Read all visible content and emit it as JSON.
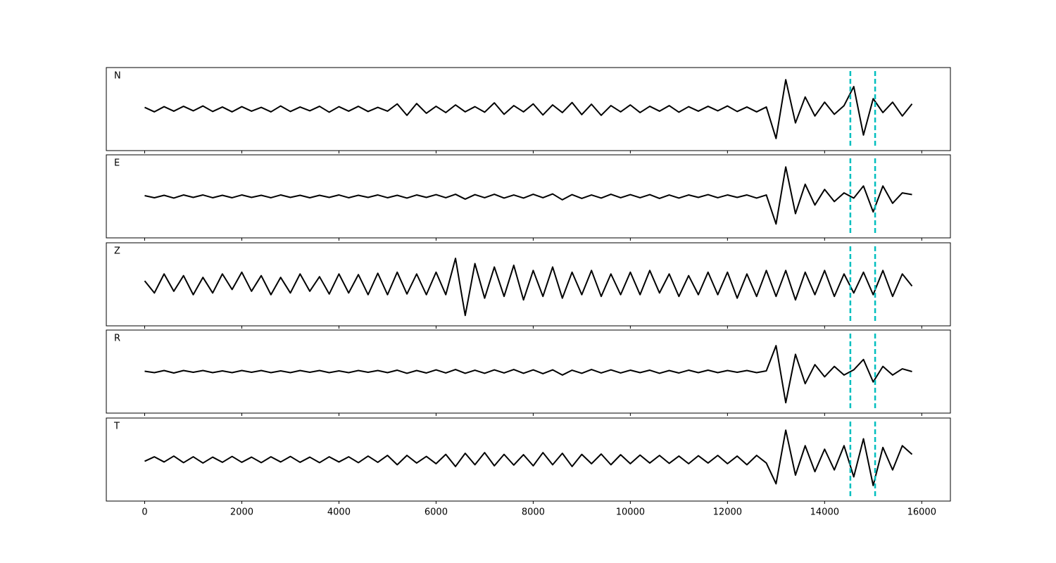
{
  "chart_data": {
    "type": "line",
    "x": [
      0,
      200,
      400,
      600,
      800,
      1000,
      1200,
      1400,
      1600,
      1800,
      2000,
      2200,
      2400,
      2600,
      2800,
      3000,
      3200,
      3400,
      3600,
      3800,
      4000,
      4200,
      4400,
      4600,
      4800,
      5000,
      5200,
      5400,
      5600,
      5800,
      6000,
      6200,
      6400,
      6600,
      6800,
      7000,
      7200,
      7400,
      7600,
      7800,
      8000,
      8200,
      8400,
      8600,
      8800,
      9000,
      9200,
      9400,
      9600,
      9800,
      10000,
      10200,
      10400,
      10600,
      10800,
      11000,
      11200,
      11400,
      11600,
      11800,
      12000,
      12200,
      12400,
      12600,
      12800,
      13000,
      13200,
      13400,
      13600,
      13800,
      14000,
      14200,
      14400,
      14600,
      14800,
      15000,
      15200,
      15400,
      15600,
      15800
    ],
    "xlim": [
      -790,
      16590
    ],
    "xticks": [
      0,
      2000,
      4000,
      6000,
      8000,
      10000,
      12000,
      14000,
      16000
    ],
    "ylim": [
      -1.2,
      1.2
    ],
    "series": [
      {
        "name": "N",
        "color": "#000000",
        "values": [
          0.05,
          -0.08,
          0.07,
          -0.06,
          0.08,
          -0.05,
          0.09,
          -0.07,
          0.06,
          -0.08,
          0.07,
          -0.06,
          0.05,
          -0.08,
          0.09,
          -0.07,
          0.06,
          -0.05,
          0.08,
          -0.09,
          0.07,
          -0.06,
          0.08,
          -0.07,
          0.05,
          -0.06,
          0.15,
          -0.18,
          0.16,
          -0.12,
          0.08,
          -0.1,
          0.12,
          -0.08,
          0.07,
          -0.09,
          0.18,
          -0.15,
          0.1,
          -0.08,
          0.15,
          -0.17,
          0.12,
          -0.1,
          0.19,
          -0.16,
          0.14,
          -0.18,
          0.1,
          -0.08,
          0.12,
          -0.1,
          0.08,
          -0.06,
          0.1,
          -0.09,
          0.07,
          -0.06,
          0.08,
          -0.05,
          0.09,
          -0.07,
          0.06,
          -0.08,
          0.06,
          -0.85,
          0.85,
          -0.4,
          0.35,
          -0.2,
          0.2,
          -0.15,
          0.1,
          0.65,
          -0.75,
          0.3,
          -0.1,
          0.2,
          -0.2,
          0.15
        ]
      },
      {
        "name": "E",
        "color": "#000000",
        "values": [
          0.02,
          -0.04,
          0.03,
          -0.05,
          0.04,
          -0.03,
          0.04,
          -0.04,
          0.03,
          -0.04,
          0.04,
          -0.03,
          0.03,
          -0.04,
          0.04,
          -0.03,
          0.03,
          -0.04,
          0.03,
          -0.03,
          0.04,
          -0.04,
          0.03,
          -0.03,
          0.04,
          -0.04,
          0.03,
          -0.05,
          0.04,
          -0.03,
          0.05,
          -0.04,
          0.06,
          -0.08,
          0.05,
          -0.04,
          0.06,
          -0.05,
          0.04,
          -0.05,
          0.06,
          -0.04,
          0.07,
          -0.1,
          0.05,
          -0.06,
          0.04,
          -0.05,
          0.06,
          -0.04,
          0.05,
          -0.04,
          0.05,
          -0.06,
          0.04,
          -0.05,
          0.04,
          -0.03,
          0.05,
          -0.04,
          0.04,
          -0.03,
          0.04,
          -0.05,
          0.04,
          -0.8,
          0.85,
          -0.5,
          0.35,
          -0.25,
          0.2,
          -0.15,
          0.1,
          -0.05,
          0.3,
          -0.45,
          0.3,
          -0.2,
          0.1,
          0.05
        ]
      },
      {
        "name": "Z",
        "color": "#000000",
        "values": [
          0.1,
          -0.25,
          0.3,
          -0.2,
          0.25,
          -0.3,
          0.2,
          -0.25,
          0.3,
          -0.15,
          0.35,
          -0.2,
          0.25,
          -0.3,
          0.2,
          -0.25,
          0.3,
          -0.2,
          0.22,
          -0.28,
          0.3,
          -0.25,
          0.28,
          -0.3,
          0.32,
          -0.3,
          0.35,
          -0.28,
          0.3,
          -0.3,
          0.35,
          -0.3,
          0.75,
          -0.9,
          0.6,
          -0.4,
          0.5,
          -0.35,
          0.55,
          -0.45,
          0.4,
          -0.35,
          0.5,
          -0.4,
          0.35,
          -0.3,
          0.4,
          -0.35,
          0.3,
          -0.3,
          0.35,
          -0.3,
          0.4,
          -0.25,
          0.3,
          -0.35,
          0.25,
          -0.3,
          0.35,
          -0.3,
          0.35,
          -0.4,
          0.3,
          -0.35,
          0.4,
          -0.35,
          0.4,
          -0.45,
          0.35,
          -0.3,
          0.4,
          -0.35,
          0.3,
          -0.25,
          0.35,
          -0.3,
          0.4,
          -0.35,
          0.3,
          -0.05
        ]
      },
      {
        "name": "R",
        "color": "#000000",
        "values": [
          0.01,
          -0.03,
          0.03,
          -0.04,
          0.03,
          -0.02,
          0.03,
          -0.03,
          0.02,
          -0.03,
          0.03,
          -0.02,
          0.03,
          -0.03,
          0.02,
          -0.03,
          0.03,
          -0.02,
          0.03,
          -0.03,
          0.02,
          -0.03,
          0.03,
          -0.02,
          0.03,
          -0.03,
          0.04,
          -0.05,
          0.03,
          -0.04,
          0.05,
          -0.04,
          0.06,
          -0.05,
          0.04,
          -0.05,
          0.05,
          -0.04,
          0.06,
          -0.05,
          0.05,
          -0.06,
          0.05,
          -0.1,
          0.04,
          -0.05,
          0.06,
          -0.04,
          0.05,
          -0.04,
          0.04,
          -0.03,
          0.04,
          -0.05,
          0.03,
          -0.04,
          0.04,
          -0.03,
          0.04,
          -0.03,
          0.03,
          -0.02,
          0.03,
          -0.03,
          0.02,
          0.75,
          -0.9,
          0.5,
          -0.35,
          0.2,
          -0.15,
          0.15,
          -0.1,
          0.05,
          0.35,
          -0.3,
          0.15,
          -0.1,
          0.08,
          0.0
        ]
      },
      {
        "name": "T",
        "color": "#000000",
        "values": [
          -0.05,
          0.08,
          -0.07,
          0.1,
          -0.09,
          0.08,
          -0.1,
          0.07,
          -0.08,
          0.09,
          -0.08,
          0.07,
          -0.09,
          0.08,
          -0.07,
          0.09,
          -0.08,
          0.07,
          -0.09,
          0.08,
          -0.07,
          0.08,
          -0.09,
          0.1,
          -0.08,
          0.12,
          -0.15,
          0.12,
          -0.1,
          0.09,
          -0.12,
          0.15,
          -0.2,
          0.18,
          -0.15,
          0.2,
          -0.18,
          0.15,
          -0.16,
          0.14,
          -0.18,
          0.2,
          -0.15,
          0.18,
          -0.2,
          0.15,
          -0.12,
          0.16,
          -0.15,
          0.14,
          -0.12,
          0.13,
          -0.1,
          0.12,
          -0.11,
          0.1,
          -0.12,
          0.11,
          -0.1,
          0.12,
          -0.12,
          0.1,
          -0.15,
          0.12,
          -0.1,
          -0.7,
          0.85,
          -0.45,
          0.4,
          -0.35,
          0.3,
          -0.3,
          0.4,
          -0.5,
          0.6,
          -0.75,
          0.35,
          -0.3,
          0.4,
          0.15
        ]
      }
    ],
    "vlines": {
      "x": [
        14530,
        15040
      ],
      "color": "#00bfbf"
    }
  }
}
